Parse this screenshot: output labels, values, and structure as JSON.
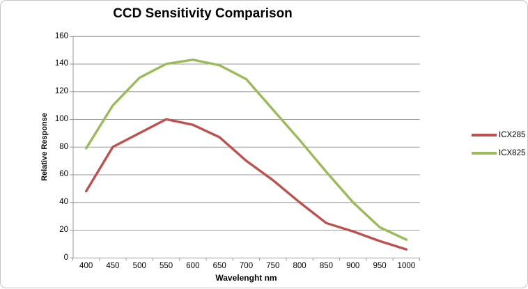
{
  "chart_data": {
    "type": "line",
    "title": "CCD Sensitivity Comparison",
    "xlabel": "Wavelenght nm",
    "ylabel": "Relative Response",
    "categories": [
      400,
      450,
      500,
      550,
      600,
      650,
      700,
      750,
      800,
      850,
      900,
      950,
      1000
    ],
    "series": [
      {
        "name": "ICX285",
        "color": "#C0504D",
        "values": [
          48,
          80,
          90,
          100,
          96,
          87,
          70,
          56,
          40,
          25,
          19,
          12,
          6
        ]
      },
      {
        "name": "ICX825",
        "color": "#9BBB59",
        "values": [
          79,
          110,
          130,
          140,
          143,
          139,
          129,
          107,
          85,
          62,
          40,
          22,
          13
        ]
      }
    ],
    "ylim": [
      0,
      160
    ],
    "ytick_step": 20,
    "ytick_labels": [
      "0",
      "20",
      "40",
      "60",
      "80",
      "100",
      "120",
      "140",
      "160"
    ],
    "grid": true,
    "legend_position": "right",
    "axis_color": "#9a9a9a"
  }
}
